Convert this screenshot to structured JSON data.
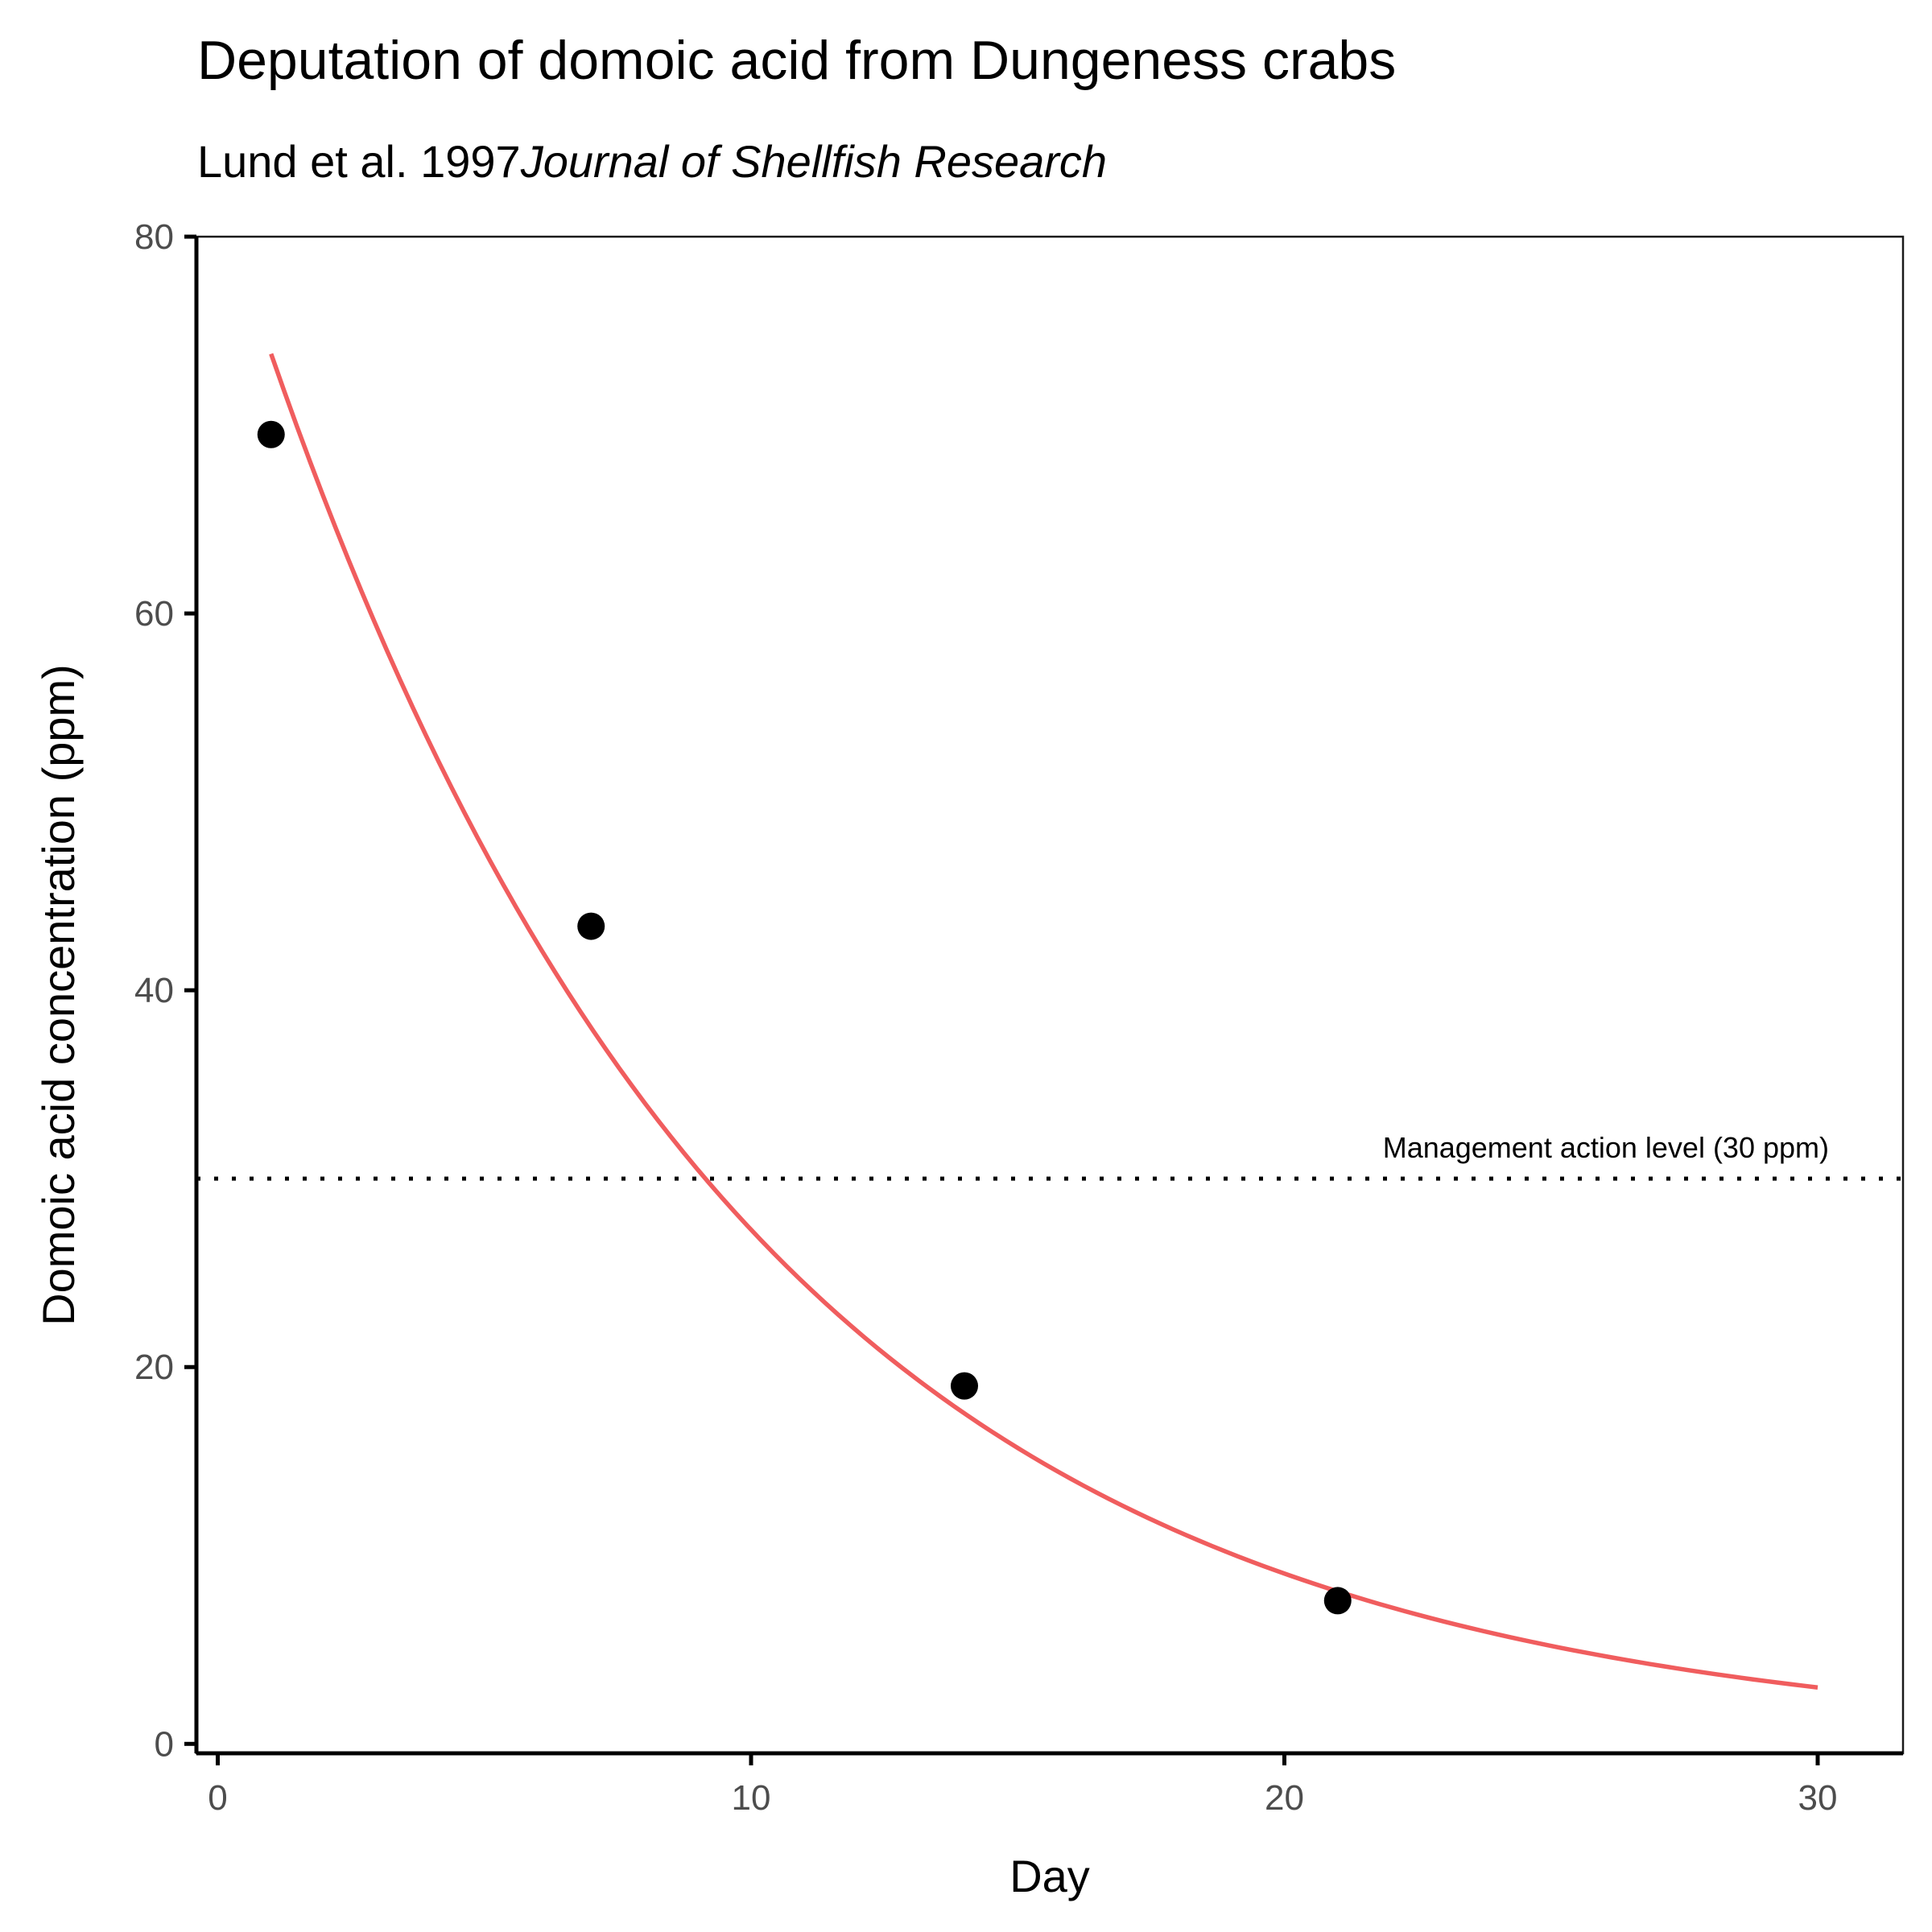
{
  "chart_data": {
    "type": "scatter",
    "title": "Deputation of domoic acid from Dungeness crabs",
    "subtitle_authors": "Lund et al. 1997",
    "subtitle_journal": "Journal of Shellfish Research",
    "xlabel": "Day",
    "ylabel": "Domoic acid concentration (ppm)",
    "xlim": [
      -0.4,
      31.6
    ],
    "ylim": [
      -0.5,
      80
    ],
    "x_ticks": [
      0,
      10,
      20,
      30
    ],
    "y_ticks": [
      0,
      20,
      40,
      60,
      80
    ],
    "grid": false,
    "series": [
      {
        "type": "points",
        "x": [
          1,
          7,
          14,
          21
        ],
        "y": [
          69.5,
          43.4,
          19.0,
          7.6
        ],
        "color": "#000000"
      },
      {
        "type": "line",
        "model": "exponential decay fit",
        "a": 82.4,
        "k": 0.1105,
        "x_range": [
          1,
          30
        ],
        "color": "#F05D5E"
      }
    ],
    "reference_line": {
      "y": 30,
      "style": "dotted",
      "label": "Management action level (30 ppm)",
      "color": "#000000"
    }
  }
}
